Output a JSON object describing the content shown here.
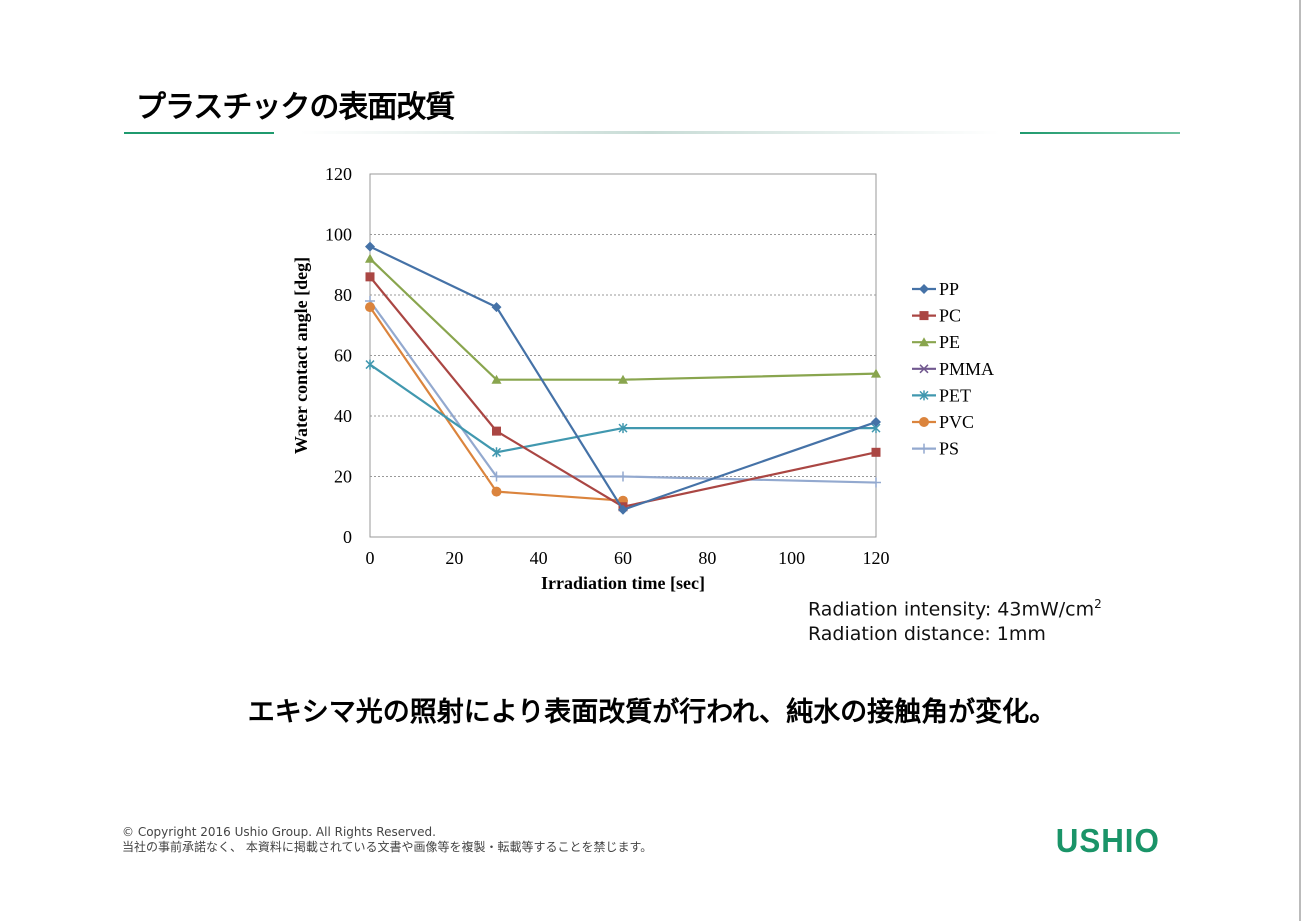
{
  "page": {
    "title": "プラスチックの表面改質",
    "message": "エキシマ光の照射により表面改質が行われ、純水の接触角が変化。",
    "note1": "Radiation intensity: 43mW/cm",
    "note1_sup": "2",
    "note2": "Radiation distance: 1mm",
    "copyright1": "© Copyright 2016 Ushio Group.  All Rights Reserved.",
    "copyright2": "当社の事前承諾なく、 本資料に掲載されている文書や画像等を複製・転載等することを禁じます。",
    "logo": "USHIO"
  },
  "chart_data": {
    "type": "line",
    "title": "",
    "xlabel": "Irradiation time [sec]",
    "ylabel": "Water contact angle [deg]",
    "xlim": [
      0,
      120
    ],
    "ylim": [
      0,
      120
    ],
    "xticks": [
      0,
      20,
      40,
      60,
      80,
      100,
      120
    ],
    "yticks": [
      0,
      20,
      40,
      60,
      80,
      100,
      120
    ],
    "grid": true,
    "legend": "right",
    "x": [
      0,
      30,
      60,
      120
    ],
    "series": [
      {
        "name": "PP",
        "color": "#4572a7",
        "marker": "diamond",
        "values": [
          96,
          76,
          9,
          38
        ]
      },
      {
        "name": "PC",
        "color": "#aa4643",
        "marker": "square",
        "values": [
          86,
          35,
          10,
          28
        ]
      },
      {
        "name": "PE",
        "color": "#89a54e",
        "marker": "triangle",
        "values": [
          92,
          52,
          52,
          54
        ]
      },
      {
        "name": "PMMA",
        "color": "#71588f",
        "marker": "x",
        "values": [
          null,
          null,
          null,
          null
        ]
      },
      {
        "name": "PET",
        "color": "#4198af",
        "marker": "star",
        "values": [
          57,
          28,
          36,
          36
        ]
      },
      {
        "name": "PVC",
        "color": "#db843d",
        "marker": "circle",
        "values": [
          76,
          15,
          12,
          null
        ]
      },
      {
        "name": "PS",
        "color": "#93a9cf",
        "marker": "plus",
        "values": [
          78,
          20,
          20,
          18
        ]
      }
    ]
  }
}
